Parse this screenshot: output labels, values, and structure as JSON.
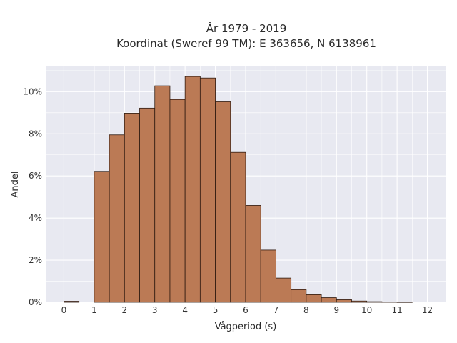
{
  "chart_data": {
    "type": "bar",
    "title": "År 1979 - 2019",
    "subtitle": "Koordinat (Sweref 99 TM): E 363656, N 6138961",
    "xlabel": "Vågperiod (s)",
    "ylabel": "Andel",
    "xlim": [
      -0.6,
      12.6
    ],
    "ylim": [
      0,
      11.2
    ],
    "xticks": [
      "0",
      "1",
      "2",
      "3",
      "4",
      "5",
      "6",
      "7",
      "8",
      "9",
      "10",
      "11",
      "12"
    ],
    "yticks": [
      "0%",
      "2%",
      "4%",
      "6%",
      "8%",
      "10%"
    ],
    "grid": true,
    "bin_width": 0.5,
    "bins": [
      {
        "x0": 0.0,
        "x1": 0.5,
        "value": 0.05
      },
      {
        "x0": 1.0,
        "x1": 1.5,
        "value": 6.22
      },
      {
        "x0": 1.5,
        "x1": 2.0,
        "value": 7.95
      },
      {
        "x0": 2.0,
        "x1": 2.5,
        "value": 8.98
      },
      {
        "x0": 2.5,
        "x1": 3.0,
        "value": 9.22
      },
      {
        "x0": 3.0,
        "x1": 3.5,
        "value": 10.28
      },
      {
        "x0": 3.5,
        "x1": 4.0,
        "value": 9.63
      },
      {
        "x0": 4.0,
        "x1": 4.5,
        "value": 10.72
      },
      {
        "x0": 4.5,
        "x1": 5.0,
        "value": 10.65
      },
      {
        "x0": 5.0,
        "x1": 5.5,
        "value": 9.52
      },
      {
        "x0": 5.5,
        "x1": 6.0,
        "value": 7.12
      },
      {
        "x0": 6.0,
        "x1": 6.5,
        "value": 4.6
      },
      {
        "x0": 6.5,
        "x1": 7.0,
        "value": 2.48
      },
      {
        "x0": 7.0,
        "x1": 7.5,
        "value": 1.15
      },
      {
        "x0": 7.5,
        "x1": 8.0,
        "value": 0.6
      },
      {
        "x0": 8.0,
        "x1": 8.5,
        "value": 0.36
      },
      {
        "x0": 8.5,
        "x1": 9.0,
        "value": 0.22
      },
      {
        "x0": 9.0,
        "x1": 9.5,
        "value": 0.12
      },
      {
        "x0": 9.5,
        "x1": 10.0,
        "value": 0.06
      },
      {
        "x0": 10.0,
        "x1": 10.5,
        "value": 0.03
      },
      {
        "x0": 10.5,
        "x1": 11.0,
        "value": 0.02
      },
      {
        "x0": 11.0,
        "x1": 11.5,
        "value": 0.01
      }
    ],
    "colors": {
      "bar_fill": "#bb7a55",
      "bar_stroke": "#2e1a10",
      "plot_bg": "#e8e9f1",
      "grid": "#ffffff"
    }
  }
}
